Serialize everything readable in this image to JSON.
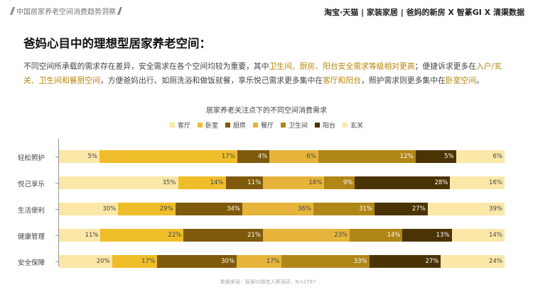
{
  "header": {
    "section_title": "中国居家养老空间消费趋势洞察",
    "brand": "淘宝·天猫 | 家装家居 | 爸妈的新房 X 智篆GI X 清渠数据"
  },
  "title": "爸妈心目中的理想型居家养老空间：",
  "description": {
    "p1": "不同空间所承载的需求存在差异，安全需求在各个空间均较为重要，其中",
    "h1": "卫生间、厨房、阳台安全需求等级相对更高",
    "p2": "；便捷诉求更多在",
    "h2": "入户/玄关、卫生间和餐厨空间",
    "p3": "，方便爸妈出行、如厕洗浴和做饭就餐，享乐悦己需求更多集中在",
    "h3": "客厅和阳台",
    "p4": "，照护需求则更多集中在",
    "h4": "卧室空间",
    "p5": "。"
  },
  "source": "数据来源：智篆GI银老人群调研，N=2767",
  "chart_data": {
    "type": "bar",
    "orientation": "horizontal",
    "stacked": true,
    "title": "居家养老关注点下的不同空间消费需求",
    "categories": [
      "轻松照护",
      "悦己享乐",
      "生活便利",
      "健康管理",
      "安全保障"
    ],
    "series": [
      {
        "name": "客厅",
        "color": "#fbe7a8",
        "values": [
          5,
          35,
          30,
          11,
          20
        ]
      },
      {
        "name": "卧室",
        "color": "#efbd2a",
        "values": [
          17,
          14,
          29,
          22,
          17
        ]
      },
      {
        "name": "厨房",
        "color": "#7e5a0a",
        "values": [
          4,
          11,
          34,
          21,
          30
        ]
      },
      {
        "name": "餐厅",
        "color": "#e6b43a",
        "values": [
          6,
          18,
          36,
          23,
          17
        ]
      },
      {
        "name": "卫生间",
        "color": "#b08617",
        "values": [
          12,
          9,
          31,
          14,
          33
        ]
      },
      {
        "name": "阳台",
        "color": "#4a3305",
        "values": [
          5,
          28,
          27,
          13,
          27
        ]
      },
      {
        "name": "玄关",
        "color": "#fbe7a8",
        "values": [
          6,
          16,
          39,
          14,
          24
        ]
      }
    ],
    "legend_position": "top",
    "grid": false
  }
}
